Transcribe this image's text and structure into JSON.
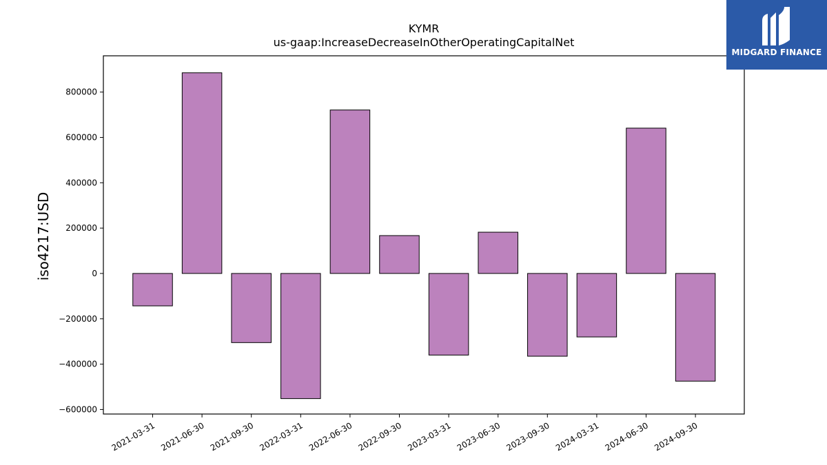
{
  "logo": {
    "text": "MIDGARD FINANCE",
    "color": "#2b5aa8"
  },
  "chart_data": {
    "type": "bar",
    "title": "KYMR",
    "subtitle": "us-gaap:IncreaseDecreaseInOtherOperatingCapitalNet",
    "xlabel": "",
    "ylabel": "iso4217:USD",
    "ylim": [
      -620000,
      960000
    ],
    "yticks": [
      -600000,
      -400000,
      -200000,
      0,
      200000,
      400000,
      600000,
      800000
    ],
    "categories": [
      "2021-03-31",
      "2021-06-30",
      "2021-09-30",
      "2022-03-31",
      "2022-06-30",
      "2022-09-30",
      "2023-03-31",
      "2023-06-30",
      "2023-09-30",
      "2024-03-31",
      "2024-06-30",
      "2024-09-30"
    ],
    "values": [
      -143000,
      885000,
      -305000,
      -552000,
      721000,
      167000,
      -360000,
      182000,
      -365000,
      -280000,
      641000,
      -475000
    ],
    "bar_color": "#bc82bd",
    "edge_color": "#000000",
    "grid": false,
    "legend": "none"
  }
}
